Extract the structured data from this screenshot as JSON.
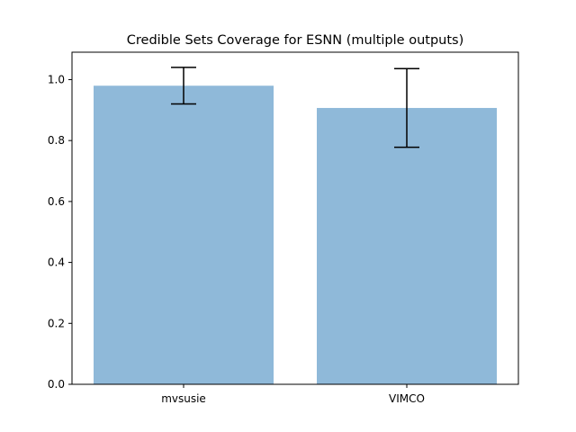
{
  "chart_data": {
    "type": "bar",
    "title": "Credible Sets Coverage for ESNN (multiple outputs)",
    "xlabel": "",
    "ylabel": "",
    "categories": [
      "mvsusie",
      "VIMCO"
    ],
    "values": [
      0.98,
      0.907
    ],
    "error_low": [
      0.92,
      0.778
    ],
    "error_high": [
      1.04,
      1.036
    ],
    "ylim": [
      0,
      1.09
    ],
    "yticks": [
      0.0,
      0.2,
      0.4,
      0.6,
      0.8,
      1.0
    ],
    "ytick_labels": [
      "0.0",
      "0.2",
      "0.4",
      "0.6",
      "0.8",
      "1.0"
    ],
    "bar_color": "#8fb9d9",
    "error_color": "#000000",
    "grid": false,
    "legend": "none"
  }
}
